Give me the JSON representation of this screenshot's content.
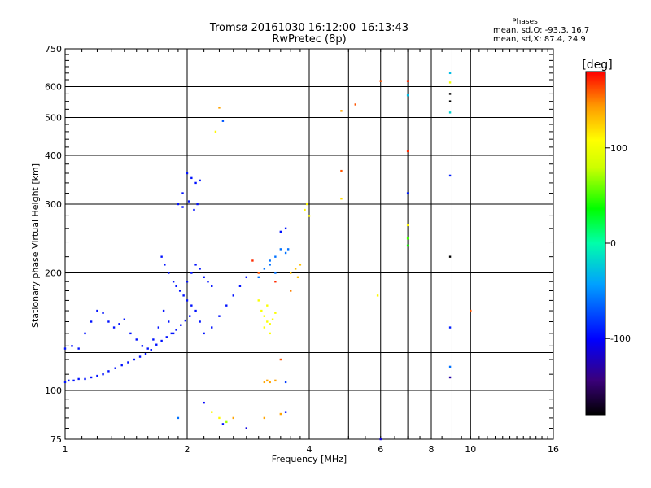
{
  "chart_data": {
    "type": "scatter",
    "title": "Tromsø 20161030 16:12:00–16:13:43",
    "subtitle": "RwPretec (8p)",
    "xlabel": "Frequency [MHz]",
    "ylabel": "Stationary phase Virtual Height [km]",
    "x_scale": "log",
    "y_scale": "log",
    "xlim": [
      1,
      16
    ],
    "ylim": [
      75,
      750
    ],
    "x_ticks": [
      "1",
      "2",
      "4",
      "6",
      "8",
      "10",
      "16"
    ],
    "y_ticks": [
      "75",
      "100",
      "200",
      "300",
      "400",
      "500",
      "600",
      "750"
    ],
    "grid": true,
    "phases": {
      "label": "Phases",
      "o_stats": "mean, sd,O: -93.3, 16.7",
      "x_stats": "mean, sd,X:  87.4, 24.9"
    },
    "colorbar": {
      "label": "[deg]",
      "ticks": [
        "100",
        "0",
        "-100"
      ],
      "range": [
        -180,
        180
      ]
    },
    "series": [
      {
        "points": [
          [
            1.0,
            105,
            -95
          ],
          [
            1.02,
            106,
            -95
          ],
          [
            1.05,
            106,
            -95
          ],
          [
            1.08,
            107,
            -95
          ],
          [
            1.12,
            107,
            -95
          ],
          [
            1.16,
            108,
            -95
          ],
          [
            1.2,
            109,
            -95
          ],
          [
            1.24,
            110,
            -95
          ],
          [
            1.28,
            112,
            -95
          ],
          [
            1.33,
            114,
            -95
          ],
          [
            1.38,
            116,
            -95
          ],
          [
            1.43,
            118,
            -95
          ],
          [
            1.48,
            120,
            -95
          ],
          [
            1.53,
            122,
            -95
          ],
          [
            1.58,
            124,
            -95
          ],
          [
            1.63,
            127,
            -95
          ],
          [
            1.68,
            131,
            -95
          ],
          [
            1.73,
            134,
            -95
          ],
          [
            1.78,
            137,
            -95
          ],
          [
            1.83,
            140,
            -95
          ],
          [
            1.88,
            143,
            -95
          ],
          [
            1.93,
            147,
            -95
          ],
          [
            1.98,
            151,
            -95
          ],
          [
            2.03,
            155,
            -95
          ],
          [
            1.0,
            128,
            -95
          ],
          [
            1.04,
            130,
            -95
          ],
          [
            1.08,
            128,
            -95
          ],
          [
            1.12,
            140,
            -95
          ],
          [
            1.16,
            150,
            -95
          ],
          [
            1.2,
            160,
            -95
          ],
          [
            1.24,
            158,
            -95
          ],
          [
            1.28,
            150,
            -95
          ],
          [
            1.32,
            145,
            -95
          ],
          [
            1.36,
            148,
            -95
          ],
          [
            1.4,
            152,
            -95
          ],
          [
            1.45,
            140,
            -95
          ],
          [
            1.5,
            135,
            -95
          ],
          [
            1.55,
            130,
            -95
          ],
          [
            1.6,
            128,
            -95
          ],
          [
            1.65,
            135,
            -95
          ],
          [
            1.7,
            145,
            -95
          ],
          [
            1.75,
            160,
            -95
          ],
          [
            1.8,
            150,
            -95
          ],
          [
            1.85,
            140,
            -95
          ],
          [
            1.73,
            220,
            -95
          ],
          [
            1.76,
            210,
            -95
          ],
          [
            1.8,
            200,
            -95
          ],
          [
            1.85,
            190,
            -95
          ],
          [
            1.88,
            185,
            -95
          ],
          [
            1.92,
            180,
            -95
          ],
          [
            1.96,
            175,
            -95
          ],
          [
            2.0,
            170,
            -95
          ],
          [
            2.05,
            165,
            -95
          ],
          [
            2.1,
            160,
            -95
          ],
          [
            2.15,
            150,
            -95
          ],
          [
            2.2,
            140,
            -95
          ],
          [
            2.3,
            145,
            -95
          ],
          [
            2.4,
            155,
            -95
          ],
          [
            2.5,
            165,
            -95
          ],
          [
            2.6,
            175,
            -95
          ],
          [
            2.7,
            185,
            -95
          ],
          [
            2.8,
            195,
            -95
          ],
          [
            1.9,
            300,
            -95
          ],
          [
            1.95,
            320,
            -95
          ],
          [
            2.0,
            360,
            -95
          ],
          [
            2.05,
            350,
            -95
          ],
          [
            2.1,
            340,
            -95
          ],
          [
            2.15,
            345,
            -95
          ],
          [
            1.95,
            295,
            -95
          ],
          [
            2.02,
            305,
            -95
          ],
          [
            2.08,
            290,
            -95
          ],
          [
            2.12,
            300,
            -95
          ],
          [
            2.0,
            190,
            -95
          ],
          [
            2.05,
            200,
            -95
          ],
          [
            2.1,
            210,
            -95
          ],
          [
            2.15,
            205,
            -95
          ],
          [
            2.2,
            195,
            -95
          ],
          [
            2.25,
            190,
            -95
          ],
          [
            2.3,
            185,
            -95
          ],
          [
            3.0,
            195,
            -60
          ],
          [
            3.1,
            205,
            -60
          ],
          [
            3.2,
            215,
            -60
          ],
          [
            3.3,
            220,
            -60
          ],
          [
            3.4,
            230,
            -60
          ],
          [
            3.5,
            225,
            -60
          ],
          [
            3.55,
            230,
            -60
          ],
          [
            3.4,
            255,
            -95
          ],
          [
            3.5,
            260,
            -95
          ],
          [
            3.2,
            210,
            -60
          ],
          [
            3.3,
            200,
            -60
          ],
          [
            3.0,
            170,
            105
          ],
          [
            3.05,
            160,
            105
          ],
          [
            3.1,
            155,
            105
          ],
          [
            3.15,
            150,
            105
          ],
          [
            3.2,
            148,
            105
          ],
          [
            3.25,
            152,
            105
          ],
          [
            3.3,
            158,
            105
          ],
          [
            3.15,
            165,
            105
          ],
          [
            3.1,
            145,
            105
          ],
          [
            3.2,
            140,
            105
          ],
          [
            3.1,
            105,
            140
          ],
          [
            3.15,
            106,
            140
          ],
          [
            3.2,
            105,
            140
          ],
          [
            3.3,
            106,
            140
          ],
          [
            3.5,
            105,
            -80
          ],
          [
            3.6,
            200,
            130
          ],
          [
            3.7,
            205,
            130
          ],
          [
            3.8,
            210,
            130
          ],
          [
            3.75,
            195,
            130
          ],
          [
            3.9,
            290,
            110
          ],
          [
            3.95,
            300,
            110
          ],
          [
            4.0,
            280,
            110
          ],
          [
            2.3,
            88,
            110
          ],
          [
            2.4,
            85,
            110
          ],
          [
            2.5,
            83,
            70
          ],
          [
            2.45,
            82,
            -95
          ],
          [
            2.6,
            85,
            140
          ],
          [
            2.8,
            80,
            -110
          ],
          [
            3.1,
            85,
            140
          ],
          [
            3.4,
            87,
            140
          ],
          [
            3.5,
            88,
            -95
          ],
          [
            2.2,
            93,
            -100
          ],
          [
            1.9,
            85,
            -60
          ],
          [
            2.4,
            530,
            140
          ],
          [
            2.35,
            460,
            110
          ],
          [
            2.45,
            490,
            -70
          ],
          [
            3.0,
            200,
            160
          ],
          [
            3.3,
            190,
            170
          ],
          [
            3.6,
            180,
            150
          ],
          [
            3.4,
            120,
            160
          ],
          [
            2.9,
            215,
            170
          ],
          [
            4.8,
            520,
            140
          ],
          [
            5.2,
            540,
            160
          ],
          [
            4.8,
            365,
            160
          ],
          [
            4.8,
            310,
            120
          ],
          [
            5.9,
            175,
            110
          ],
          [
            6.0,
            620,
            160
          ],
          [
            7.0,
            620,
            170
          ],
          [
            7.0,
            570,
            -30
          ],
          [
            7.0,
            410,
            170
          ],
          [
            7.0,
            320,
            -90
          ],
          [
            7.0,
            265,
            110
          ],
          [
            7.0,
            245,
            50
          ],
          [
            7.0,
            235,
            40
          ],
          [
            8.9,
            650,
            -30
          ],
          [
            8.9,
            615,
            100
          ],
          [
            8.9,
            575,
            -180
          ],
          [
            8.9,
            550,
            -180
          ],
          [
            8.9,
            515,
            -20
          ],
          [
            8.9,
            355,
            -90
          ],
          [
            8.9,
            220,
            -180
          ],
          [
            8.9,
            145,
            -90
          ],
          [
            8.9,
            115,
            -60
          ],
          [
            8.9,
            108,
            -130
          ],
          [
            10.0,
            160,
            160
          ],
          [
            6.0,
            75,
            -110
          ]
        ]
      }
    ]
  }
}
